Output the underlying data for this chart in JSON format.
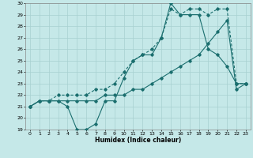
{
  "title": "",
  "xlabel": "Humidex (Indice chaleur)",
  "xlim": [
    -0.5,
    23.5
  ],
  "ylim": [
    19,
    30
  ],
  "xticks": [
    0,
    1,
    2,
    3,
    4,
    5,
    6,
    7,
    8,
    9,
    10,
    11,
    12,
    13,
    14,
    15,
    16,
    17,
    18,
    19,
    20,
    21,
    22,
    23
  ],
  "yticks": [
    19,
    20,
    21,
    22,
    23,
    24,
    25,
    26,
    27,
    28,
    29,
    30
  ],
  "background_color": "#c5e8e8",
  "grid_color": "#a8d0d0",
  "line_color": "#1a6e6e",
  "line1_x": [
    0,
    1,
    2,
    3,
    4,
    5,
    6,
    7,
    8,
    9,
    10,
    11,
    12,
    13,
    14,
    15,
    16,
    17,
    18,
    19,
    20,
    21,
    22,
    23
  ],
  "line1_y": [
    21.0,
    21.5,
    21.5,
    21.5,
    21.0,
    19.0,
    19.0,
    19.5,
    21.5,
    21.5,
    23.5,
    25.0,
    25.5,
    25.5,
    27.0,
    30.0,
    29.0,
    29.0,
    29.0,
    26.0,
    25.5,
    24.5,
    23.0,
    23.0
  ],
  "line2_x": [
    0,
    1,
    2,
    3,
    4,
    5,
    6,
    7,
    8,
    9,
    10,
    11,
    12,
    13,
    14,
    15,
    16,
    17,
    18,
    19,
    20,
    21,
    22,
    23
  ],
  "line2_y": [
    21.0,
    21.5,
    21.5,
    22.0,
    22.0,
    22.0,
    22.0,
    22.5,
    22.5,
    23.0,
    24.0,
    25.0,
    25.5,
    26.0,
    27.0,
    29.5,
    29.0,
    29.5,
    29.5,
    29.0,
    29.5,
    29.5,
    23.0,
    23.0
  ],
  "line3_x": [
    0,
    1,
    2,
    3,
    4,
    5,
    6,
    7,
    8,
    9,
    10,
    11,
    12,
    13,
    14,
    15,
    16,
    17,
    18,
    19,
    20,
    21,
    22,
    23
  ],
  "line3_y": [
    21.0,
    21.5,
    21.5,
    21.5,
    21.5,
    21.5,
    21.5,
    21.5,
    22.0,
    22.0,
    22.0,
    22.5,
    22.5,
    23.0,
    23.5,
    24.0,
    24.5,
    25.0,
    25.5,
    26.5,
    27.5,
    28.5,
    22.5,
    23.0
  ]
}
